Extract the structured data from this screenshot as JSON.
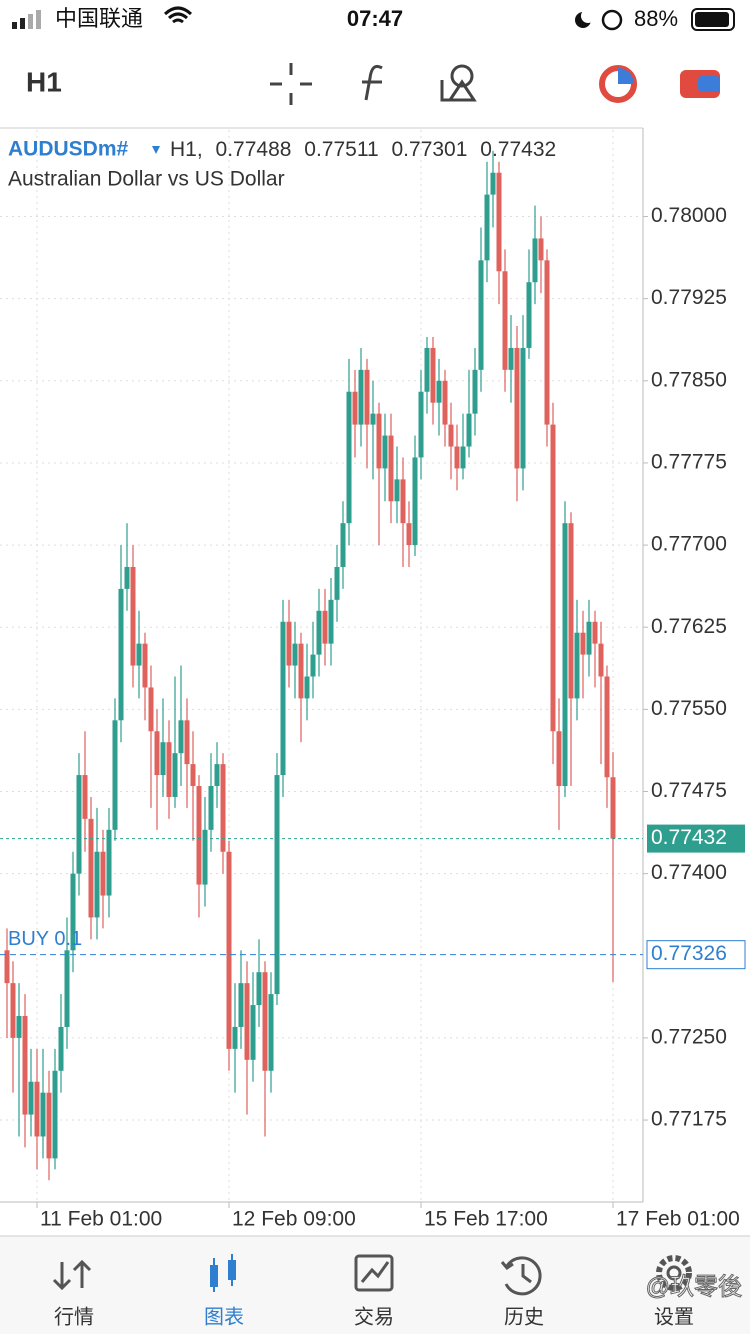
{
  "status_bar": {
    "carrier": "中国联通",
    "time": "07:47",
    "battery": "88%"
  },
  "toolbar": {
    "timeframe": "H1"
  },
  "chart_data": {
    "type": "candlestick",
    "symbol": "AUDUSDm#",
    "timeframe_label": "H1,",
    "description": "Australian Dollar vs US Dollar",
    "up_color": "#2e9e8f",
    "down_color": "#e0625c",
    "grid": true,
    "ylim": [
      0.77102,
      0.78079
    ],
    "yticks": [
      {
        "value": 0.78,
        "label": "0.78000"
      },
      0.77925,
      {
        "value": 0.7785,
        "label": "0.77850"
      },
      0.77775,
      {
        "value": 0.777,
        "label": "0.77700"
      },
      0.77625,
      {
        "value": 0.7755,
        "label": "0.77550"
      },
      0.77475,
      {
        "value": 0.774,
        "label": "0.77400"
      },
      {
        "value": 0.7725,
        "label": "0.77250"
      },
      0.77175
    ],
    "categories": [
      null,
      null,
      null,
      null,
      null,
      "11 Feb 01:00",
      null,
      null,
      null,
      null,
      null,
      null,
      null,
      null,
      null,
      null,
      null,
      null,
      null,
      null,
      null,
      null,
      null,
      null,
      null,
      null,
      null,
      null,
      null,
      null,
      null,
      null,
      null,
      null,
      null,
      null,
      null,
      "12 Feb 09:00",
      null,
      null,
      null,
      null,
      null,
      null,
      null,
      null,
      null,
      null,
      null,
      null,
      null,
      null,
      null,
      null,
      null,
      null,
      null,
      null,
      null,
      null,
      null,
      null,
      null,
      null,
      null,
      null,
      null,
      null,
      null,
      "15 Feb 17:00",
      null,
      null,
      null,
      null,
      null,
      null,
      null,
      null,
      null,
      null,
      null,
      null,
      null,
      null,
      null,
      null,
      null,
      null,
      null,
      null,
      null,
      null,
      null,
      null,
      null,
      null,
      null,
      null,
      null,
      null,
      null,
      "17 Feb 01:00"
    ],
    "open": [
      0.7733,
      0.773,
      0.7725,
      0.7727,
      0.7718,
      0.7721,
      0.7716,
      0.772,
      0.7714,
      0.7722,
      0.7726,
      0.7733,
      0.774,
      0.7749,
      0.7745,
      0.7736,
      0.7742,
      0.7738,
      0.7744,
      0.7754,
      0.7766,
      0.7768,
      0.7759,
      0.7761,
      0.7757,
      0.7753,
      0.7749,
      0.7752,
      0.7747,
      0.7751,
      0.7754,
      0.775,
      0.7748,
      0.7739,
      0.7744,
      0.7748,
      0.775,
      0.7742,
      0.7724,
      0.7726,
      0.773,
      0.7723,
      0.7728,
      0.7731,
      0.7722,
      0.7729,
      0.7749,
      0.7763,
      0.7759,
      0.7761,
      0.7756,
      0.7758,
      0.776,
      0.7764,
      0.7761,
      0.7765,
      0.7768,
      0.7772,
      0.7784,
      0.7781,
      0.7786,
      0.7781,
      0.7782,
      0.7777,
      0.778,
      0.7774,
      0.7776,
      0.7772,
      0.777,
      0.7778,
      0.7784,
      0.7788,
      0.7783,
      0.7785,
      0.7781,
      0.7779,
      0.7777,
      0.7779,
      0.7782,
      0.7786,
      0.7796,
      0.7802,
      0.7804,
      0.7795,
      0.7786,
      0.7788,
      0.7777,
      0.7788,
      0.7794,
      0.7798,
      0.7796,
      0.7781,
      0.7753,
      0.7748,
      0.7772,
      0.7756,
      0.7762,
      0.776,
      0.7763,
      0.7761,
      0.7758,
      0.77488
    ],
    "high": [
      0.7735,
      0.7732,
      0.773,
      0.7729,
      0.7724,
      0.7724,
      0.7724,
      0.7722,
      0.7724,
      0.7729,
      0.7736,
      0.7742,
      0.7751,
      0.7753,
      0.7747,
      0.7746,
      0.7744,
      0.7746,
      0.7756,
      0.777,
      0.7772,
      0.777,
      0.7764,
      0.7762,
      0.7759,
      0.7755,
      0.7756,
      0.7754,
      0.7758,
      0.7759,
      0.7756,
      0.7753,
      0.7749,
      0.7747,
      0.7751,
      0.7752,
      0.7751,
      0.7743,
      0.773,
      0.7733,
      0.7732,
      0.7731,
      0.7734,
      0.7732,
      0.7731,
      0.7751,
      0.7765,
      0.7765,
      0.7763,
      0.7762,
      0.7761,
      0.7763,
      0.7766,
      0.7766,
      0.7767,
      0.777,
      0.7774,
      0.7787,
      0.7786,
      0.7788,
      0.7787,
      0.7785,
      0.7783,
      0.7782,
      0.7782,
      0.7779,
      0.7778,
      0.7774,
      0.778,
      0.7786,
      0.7789,
      0.7789,
      0.7787,
      0.7786,
      0.7783,
      0.7781,
      0.7782,
      0.7786,
      0.7788,
      0.7799,
      0.7805,
      0.7806,
      0.7805,
      0.7797,
      0.7791,
      0.779,
      0.7791,
      0.7797,
      0.7801,
      0.78,
      0.7797,
      0.7783,
      0.7756,
      0.7774,
      0.7773,
      0.7765,
      0.7764,
      0.7765,
      0.7764,
      0.7763,
      0.7759,
      0.77511
    ],
    "low": [
      0.7725,
      0.772,
      0.7716,
      0.7715,
      0.7716,
      0.7713,
      0.7714,
      0.7712,
      0.7713,
      0.772,
      0.7724,
      0.7731,
      0.7738,
      0.7742,
      0.7734,
      0.7734,
      0.7735,
      0.7736,
      0.7743,
      0.7752,
      0.7764,
      0.7757,
      0.7756,
      0.7754,
      0.7746,
      0.7744,
      0.7747,
      0.7745,
      0.7746,
      0.7748,
      0.7746,
      0.7743,
      0.7736,
      0.7737,
      0.7742,
      0.7746,
      0.774,
      0.7722,
      0.772,
      0.7724,
      0.7718,
      0.7721,
      0.7726,
      0.7716,
      0.772,
      0.7728,
      0.7747,
      0.7757,
      0.7756,
      0.7752,
      0.7754,
      0.7756,
      0.7758,
      0.7759,
      0.7759,
      0.7763,
      0.7766,
      0.777,
      0.7778,
      0.7779,
      0.7777,
      0.7776,
      0.777,
      0.7774,
      0.7772,
      0.7772,
      0.7768,
      0.7768,
      0.7769,
      0.7776,
      0.7782,
      0.7781,
      0.778,
      0.7779,
      0.7776,
      0.7775,
      0.7776,
      0.7778,
      0.778,
      0.7784,
      0.7794,
      0.7799,
      0.7792,
      0.7784,
      0.7783,
      0.7774,
      0.7775,
      0.7787,
      0.7792,
      0.7793,
      0.7779,
      0.775,
      0.7744,
      0.7747,
      0.7748,
      0.7754,
      0.7756,
      0.7758,
      0.7757,
      0.775,
      0.7746,
      0.77301
    ],
    "close": [
      0.773,
      0.7725,
      0.7727,
      0.7718,
      0.7721,
      0.7716,
      0.772,
      0.7714,
      0.7722,
      0.7726,
      0.7733,
      0.774,
      0.7749,
      0.7745,
      0.7736,
      0.7742,
      0.7738,
      0.7744,
      0.7754,
      0.7766,
      0.7768,
      0.7759,
      0.7761,
      0.7757,
      0.7753,
      0.7749,
      0.7752,
      0.7747,
      0.7751,
      0.7754,
      0.775,
      0.7748,
      0.7739,
      0.7744,
      0.7748,
      0.775,
      0.7742,
      0.7724,
      0.7726,
      0.773,
      0.7723,
      0.7728,
      0.7731,
      0.7722,
      0.7729,
      0.7749,
      0.7763,
      0.7759,
      0.7761,
      0.7756,
      0.7758,
      0.776,
      0.7764,
      0.7761,
      0.7765,
      0.7768,
      0.7772,
      0.7784,
      0.7781,
      0.7786,
      0.7781,
      0.7782,
      0.7777,
      0.778,
      0.7774,
      0.7776,
      0.7772,
      0.777,
      0.7778,
      0.7784,
      0.7788,
      0.7783,
      0.7785,
      0.7781,
      0.7779,
      0.7777,
      0.7779,
      0.7782,
      0.7786,
      0.7796,
      0.7802,
      0.7804,
      0.7795,
      0.7786,
      0.7788,
      0.7777,
      0.7788,
      0.7794,
      0.7798,
      0.7796,
      0.7781,
      0.7753,
      0.7748,
      0.7772,
      0.7756,
      0.7762,
      0.776,
      0.7763,
      0.7761,
      0.7758,
      0.77488,
      0.77432
    ],
    "price_line": 0.77432,
    "position_line": {
      "label": "BUY 0.1",
      "value": 0.77326
    }
  },
  "tab_bar": [
    "行情",
    "图表",
    "交易",
    "历史",
    "设置"
  ],
  "watermark": "@玖零後"
}
